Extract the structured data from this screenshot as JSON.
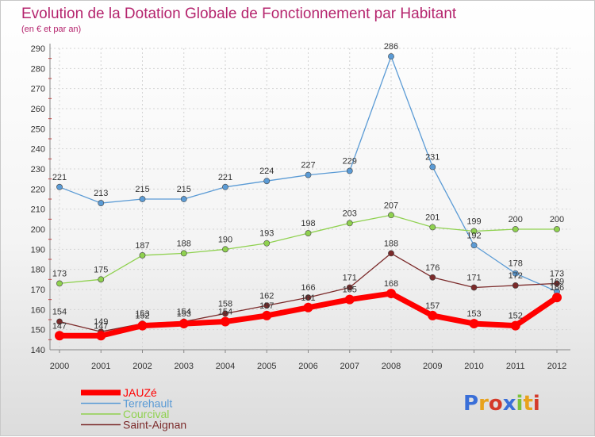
{
  "chart_data": {
    "type": "line",
    "title": "Evolution de la Dotation Globale de Fonctionnement par Habitant",
    "subtitle": "(en € et par an)",
    "x": [
      "2000",
      "2001",
      "2002",
      "2003",
      "2004",
      "2005",
      "2006",
      "2007",
      "2008",
      "2009",
      "2010",
      "2011",
      "2012"
    ],
    "yticks": [
      "140",
      "150",
      "160",
      "170",
      "180",
      "190",
      "200",
      "210",
      "220",
      "230",
      "240",
      "250",
      "260",
      "270",
      "280",
      "290"
    ],
    "ylim": [
      140,
      290
    ],
    "grid": true,
    "legend_position": "bottom-left",
    "series": [
      {
        "name": "JAUZé",
        "color": "#ff0000",
        "values": [
          147,
          147,
          152,
          153,
          154,
          157,
          161,
          165,
          168,
          157,
          153,
          152,
          166
        ],
        "labels": [
          "147",
          "147",
          "152",
          "153",
          "154",
          "157",
          "161",
          "165",
          "168",
          "157",
          "153",
          "152",
          "166"
        ]
      },
      {
        "name": "Terrehault",
        "color": "#5b9bd5",
        "values": [
          221,
          213,
          215,
          215,
          221,
          224,
          227,
          229,
          286,
          231,
          192,
          178,
          169
        ],
        "labels": [
          "221",
          "213",
          "215",
          "215",
          "221",
          "224",
          "227",
          "229",
          "286",
          "231",
          "192",
          "178",
          "169"
        ]
      },
      {
        "name": "Courcival",
        "color": "#8fd14f",
        "values": [
          173,
          175,
          187,
          188,
          190,
          193,
          198,
          203,
          207,
          201,
          199,
          200,
          200
        ],
        "labels": [
          "173",
          "175",
          "187",
          "188",
          "190",
          "193",
          "198",
          "203",
          "207",
          "201",
          "199",
          "200",
          "200"
        ]
      },
      {
        "name": "Saint-Aignan",
        "color": "#7b2a2a",
        "values": [
          154,
          149,
          153,
          154,
          158,
          162,
          166,
          171,
          188,
          176,
          171,
          172,
          173
        ],
        "labels": [
          "154",
          "149",
          "153",
          "154",
          "158",
          "162",
          "166",
          "171",
          "188",
          "176",
          "171",
          "172",
          "173"
        ]
      }
    ]
  },
  "logo": {
    "text": "Proxiti",
    "colors": [
      "#3a6fd8",
      "#e8a21c",
      "#d43a2a",
      "#3a6fd8",
      "#7cc23a",
      "#e8a21c",
      "#d43a2a"
    ]
  }
}
